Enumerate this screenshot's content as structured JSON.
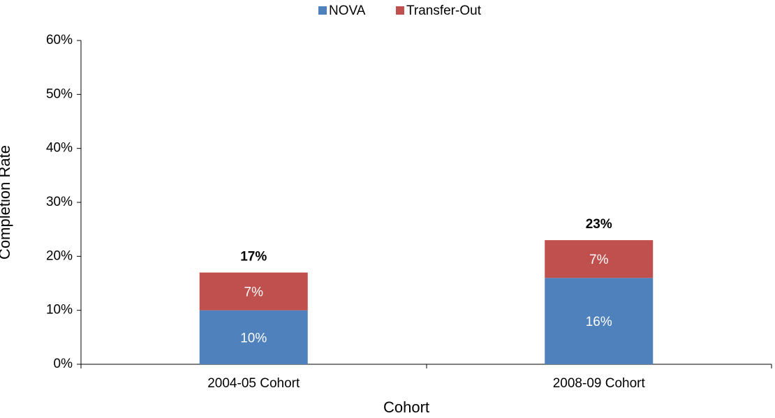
{
  "chart_data": {
    "type": "stacked-bar",
    "y_label": "Completion Rate",
    "x_label": "Cohort",
    "categories": [
      "2004-05 Cohort",
      "2008-09 Cohort"
    ],
    "series": [
      {
        "name": "NOVA",
        "color": "#4f81bd",
        "values": [
          10,
          16
        ],
        "value_labels": [
          "10%",
          "16%"
        ]
      },
      {
        "name": "Transfer-Out",
        "color": "#c0504d",
        "values": [
          7,
          7
        ],
        "value_labels": [
          "7%",
          "7%"
        ]
      }
    ],
    "totals": [
      17,
      23
    ],
    "total_labels": [
      "17%",
      "23%"
    ],
    "ylim": [
      0,
      60
    ],
    "yticks": [
      {
        "value": 0,
        "label": "0%"
      },
      {
        "value": 10,
        "label": "10%"
      },
      {
        "value": 20,
        "label": "20%"
      },
      {
        "value": 30,
        "label": "30%"
      },
      {
        "value": 40,
        "label": "40%"
      },
      {
        "value": 50,
        "label": "50%"
      },
      {
        "value": 60,
        "label": "60%"
      }
    ],
    "legend": "top",
    "grid": false
  }
}
